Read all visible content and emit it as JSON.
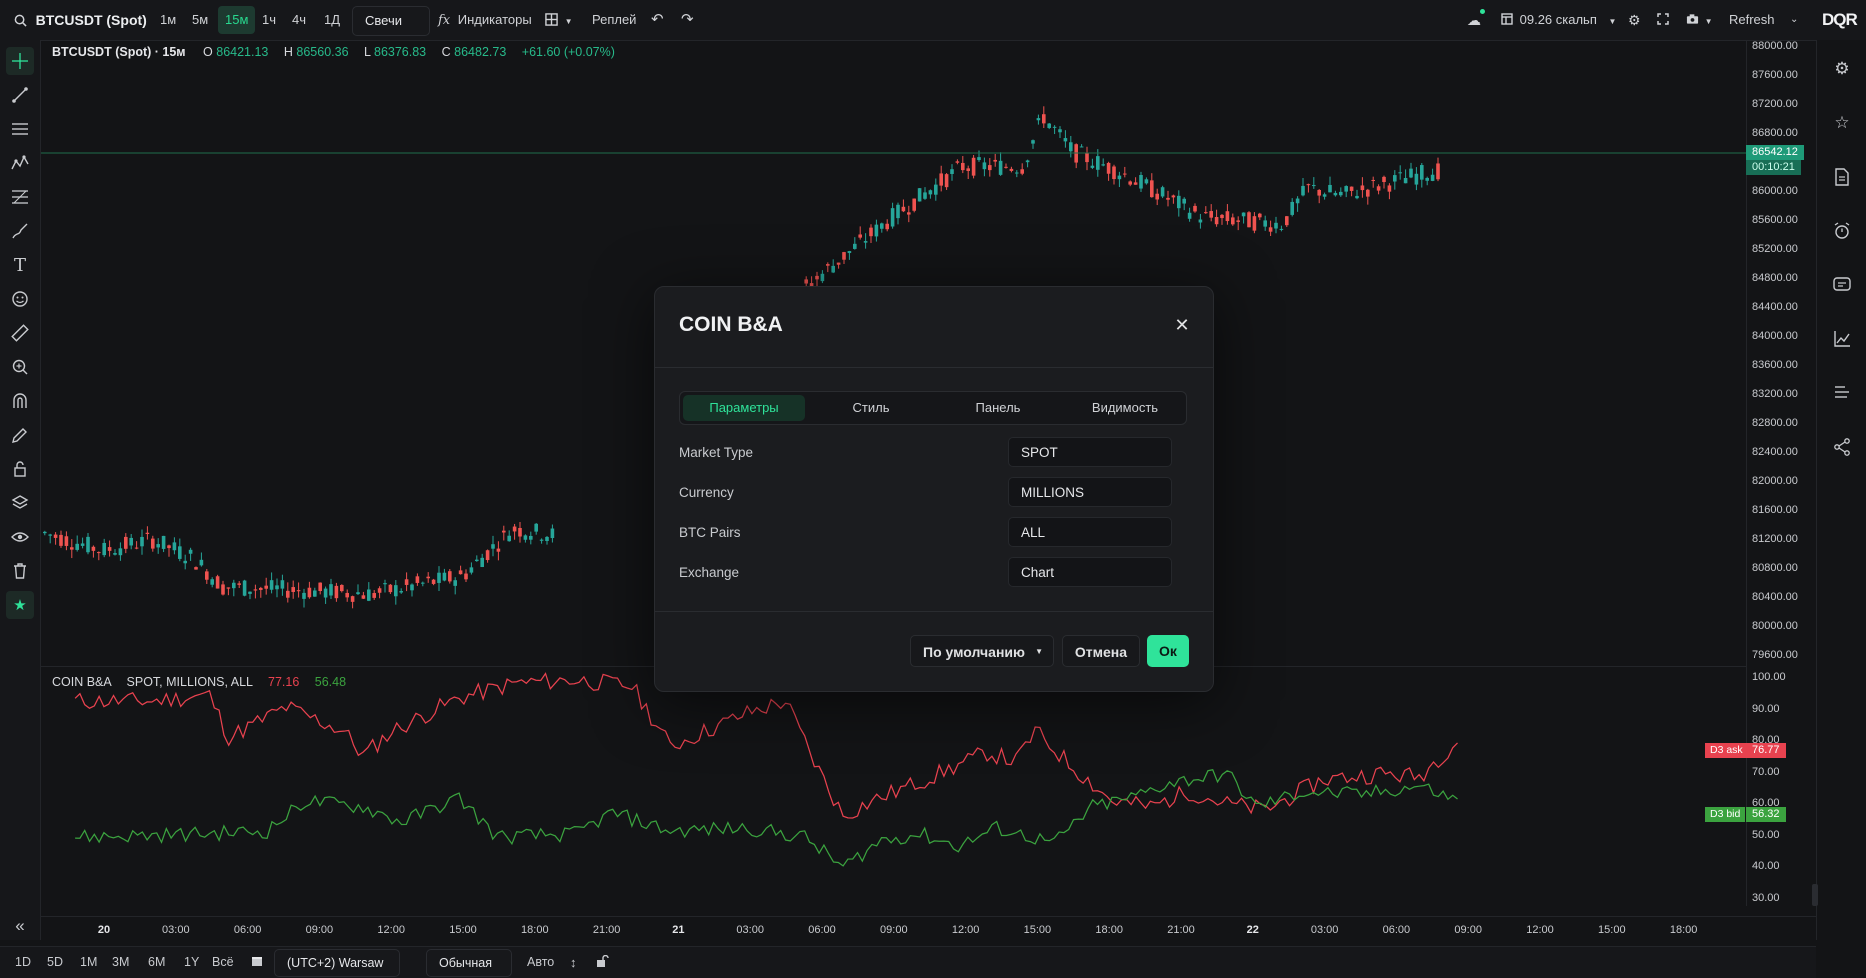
{
  "topbar": {
    "symbol": "BTCUSDT (Spot)",
    "timeframes": [
      "1м",
      "5м",
      "15м",
      "1ч",
      "4ч",
      "1Д"
    ],
    "active_timeframe": 2,
    "chart_type": "Свечи",
    "indicators_label": "Индикаторы",
    "replay_label": "Реплей",
    "layout_name": "09.26 скальп",
    "refresh_label": "Refresh",
    "logo_text": "DQR"
  },
  "legend": {
    "title": "BTCUSDT (Spot) · 15м",
    "o_label": "O",
    "o_value": "86421.13",
    "h_label": "H",
    "h_value": "86560.36",
    "l_label": "L",
    "l_value": "86376.83",
    "c_label": "C",
    "c_value": "86482.73",
    "change": "+61.60 (+0.07%)"
  },
  "price_axis": [
    "88000.00",
    "87600.00",
    "87200.00",
    "86800.00",
    "86400.00",
    "86000.00",
    "85600.00",
    "85200.00",
    "84800.00",
    "84400.00",
    "84000.00",
    "83600.00",
    "83200.00",
    "82800.00",
    "82400.00",
    "82000.00",
    "81600.00",
    "81200.00",
    "80800.00",
    "80400.00",
    "80000.00",
    "79600.00"
  ],
  "price_tag": {
    "price": "86542.12",
    "timer": "00:10:21"
  },
  "indicator": {
    "name": "COIN B&A",
    "params": "SPOT, MILLIONS, ALL",
    "ask_value": "77.16",
    "bid_value": "56.48",
    "axis": [
      "100.00",
      "90.00",
      "80.00",
      "70.00",
      "60.00",
      "50.00",
      "40.00",
      "30.00"
    ],
    "ask_tag_label": "D3 ask",
    "ask_tag_value": "76.77",
    "bid_tag_label": "D3 bid",
    "bid_tag_value": "56.32"
  },
  "time_axis": [
    "20",
    "03:00",
    "06:00",
    "09:00",
    "12:00",
    "15:00",
    "18:00",
    "21:00",
    "21",
    "03:00",
    "06:00",
    "09:00",
    "12:00",
    "15:00",
    "18:00",
    "21:00",
    "22",
    "03:00",
    "06:00",
    "09:00",
    "12:00",
    "15:00",
    "18:00"
  ],
  "bottombar": {
    "ranges": [
      "1D",
      "5D",
      "1M",
      "3M",
      "6M",
      "1Y",
      "Всё"
    ],
    "timezone": "(UTC+2) Warsaw",
    "scale_mode": "Обычная",
    "auto_label": "Авто"
  },
  "modal": {
    "title": "COIN B&A",
    "tabs": [
      "Параметры",
      "Стиль",
      "Панель",
      "Видимость"
    ],
    "active_tab": 0,
    "params": [
      {
        "label": "Market Type",
        "value": "SPOT"
      },
      {
        "label": "Currency",
        "value": "MILLIONS"
      },
      {
        "label": "BTC Pairs",
        "value": "ALL"
      },
      {
        "label": "Exchange",
        "value": "Chart"
      }
    ],
    "default_label": "По умолчанию",
    "cancel_label": "Отмена",
    "ok_label": "Ок"
  },
  "colors": {
    "up": "#26a69a",
    "down": "#ef5350",
    "ask": "#e8424f",
    "bid": "#3ba33f",
    "accent": "#2fe39a"
  }
}
